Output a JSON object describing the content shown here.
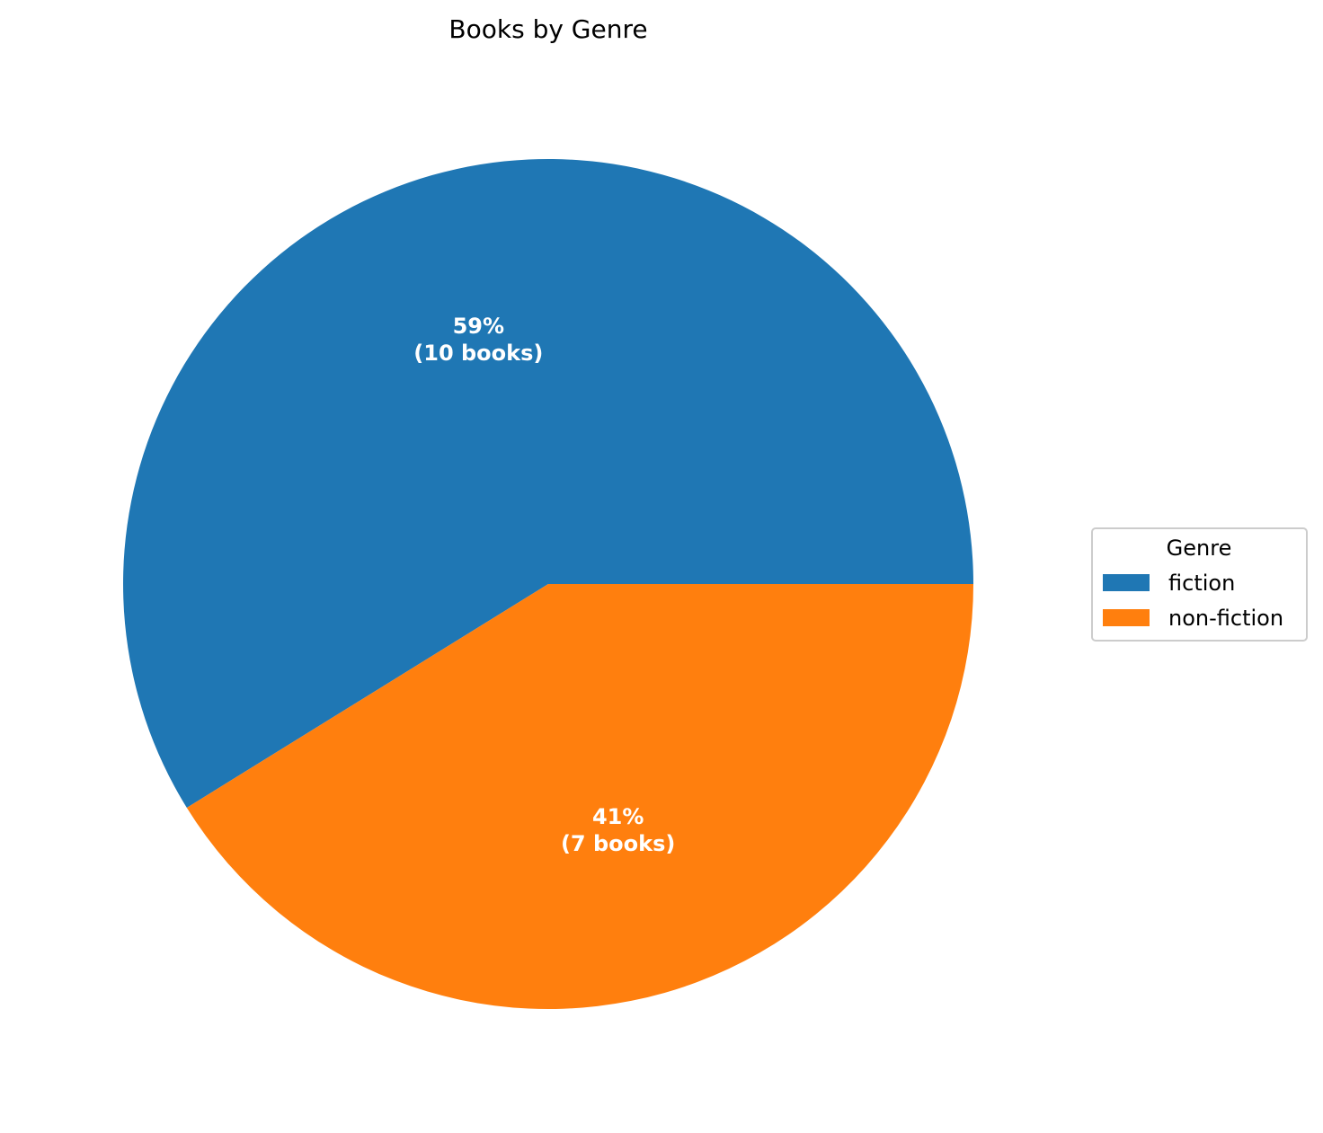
{
  "chart_data": {
    "type": "pie",
    "title": "Books by Genre",
    "categories": [
      "fiction",
      "non-fiction"
    ],
    "values": [
      10,
      7
    ],
    "percent_labels": [
      "59%",
      "41%"
    ],
    "count_labels": [
      "(10 books)",
      "(7 books)"
    ],
    "colors": [
      "#1f77b4",
      "#ff7f0e"
    ],
    "label_color": "#ffffff",
    "legend": {
      "title": "Genre",
      "placement": "right",
      "entries": [
        "fiction",
        "non-fiction"
      ]
    }
  }
}
